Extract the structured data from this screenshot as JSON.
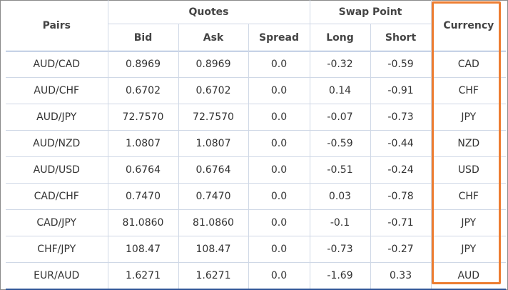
{
  "headers": {
    "pairs": "Pairs",
    "quotes": "Quotes",
    "swap_point": "Swap Point",
    "currency": "Currency",
    "bid": "Bid",
    "ask": "Ask",
    "spread": "Spread",
    "long": "Long",
    "short": "Short"
  },
  "rows": [
    {
      "pair": "AUD/CAD",
      "bid": "0.8969",
      "ask": "0.8969",
      "spread": "0.0",
      "long": "-0.32",
      "short": "-0.59",
      "currency": "CAD"
    },
    {
      "pair": "AUD/CHF",
      "bid": "0.6702",
      "ask": "0.6702",
      "spread": "0.0",
      "long": "0.14",
      "short": "-0.91",
      "currency": "CHF"
    },
    {
      "pair": "AUD/JPY",
      "bid": "72.7570",
      "ask": "72.7570",
      "spread": "0.0",
      "long": "-0.07",
      "short": "-0.73",
      "currency": "JPY"
    },
    {
      "pair": "AUD/NZD",
      "bid": "1.0807",
      "ask": "1.0807",
      "spread": "0.0",
      "long": "-0.59",
      "short": "-0.44",
      "currency": "NZD"
    },
    {
      "pair": "AUD/USD",
      "bid": "0.6764",
      "ask": "0.6764",
      "spread": "0.0",
      "long": "-0.51",
      "short": "-0.24",
      "currency": "USD"
    },
    {
      "pair": "CAD/CHF",
      "bid": "0.7470",
      "ask": "0.7470",
      "spread": "0.0",
      "long": "0.03",
      "short": "-0.78",
      "currency": "CHF"
    },
    {
      "pair": "CAD/JPY",
      "bid": "81.0860",
      "ask": "81.0860",
      "spread": "0.0",
      "long": "-0.1",
      "short": "-0.71",
      "currency": "JPY"
    },
    {
      "pair": "CHF/JPY",
      "bid": "108.47",
      "ask": "108.47",
      "spread": "0.0",
      "long": "-0.73",
      "short": "-0.27",
      "currency": "JPY"
    },
    {
      "pair": "EUR/AUD",
      "bid": "1.6271",
      "ask": "1.6271",
      "spread": "0.0",
      "long": "-1.69",
      "short": "0.33",
      "currency": "AUD"
    }
  ],
  "colors": {
    "highlight": "#ed7d31",
    "grid": "#cfd8e6",
    "bottom_rule": "#2f5597"
  }
}
